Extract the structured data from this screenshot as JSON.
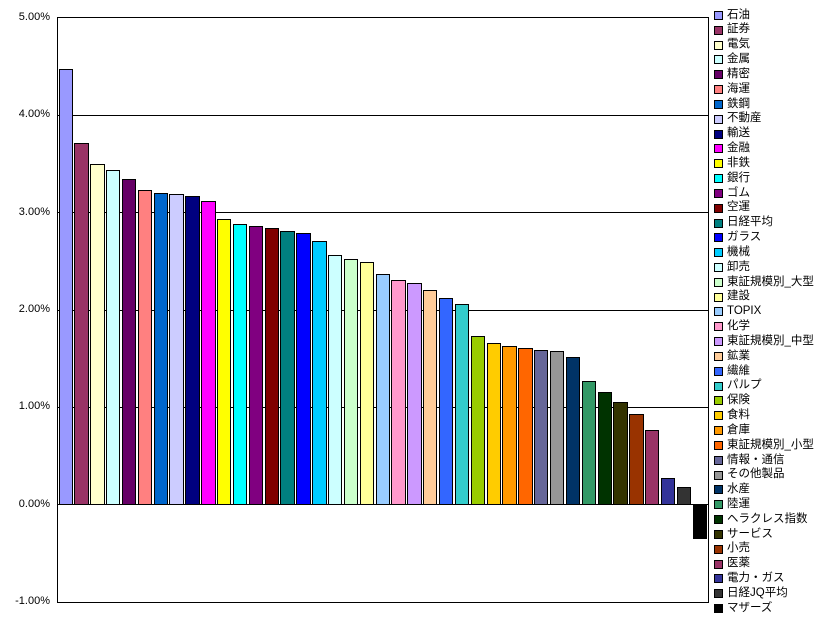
{
  "chart_data": {
    "type": "bar",
    "title": "",
    "xlabel": "",
    "ylabel": "",
    "ylim": [
      -1,
      5
    ],
    "yticks": [
      5,
      4,
      3,
      2,
      1,
      0,
      -1
    ],
    "ytick_labels": [
      "5.00%",
      "4.00%",
      "3.00%",
      "2.00%",
      "1.00%",
      "0.00%",
      "-1.00%"
    ],
    "grid": true,
    "legend_position": "right",
    "background_color": "#FFFFFF",
    "plot_border_color": "#000000",
    "gridline_color": "#000000",
    "categories": [
      "石油",
      "証券",
      "電気",
      "金属",
      "精密",
      "海運",
      "鉄鋼",
      "不動産",
      "輸送",
      "金融",
      "非鉄",
      "銀行",
      "ゴム",
      "空運",
      "日経平均",
      "ガラス",
      "機械",
      "卸売",
      "東証規模別_大型",
      "建設",
      "TOPIX",
      "化学",
      "東証規模別_中型",
      "鉱業",
      "繊維",
      "パルプ",
      "保険",
      "食料",
      "倉庫",
      "東証規模別_小型",
      "情報・通信",
      "その他製品",
      "水産",
      "陸運",
      "ヘラクレス指数",
      "サービス",
      "小売",
      "医薬",
      "電力・ガス",
      "日経JQ平均",
      "マザーズ"
    ],
    "values": [
      4.48,
      3.72,
      3.5,
      3.44,
      3.35,
      3.23,
      3.2,
      3.19,
      3.17,
      3.12,
      2.94,
      2.88,
      2.86,
      2.84,
      2.81,
      2.79,
      2.71,
      2.57,
      2.52,
      2.49,
      2.37,
      2.31,
      2.28,
      2.21,
      2.12,
      2.06,
      1.73,
      1.66,
      1.63,
      1.61,
      1.59,
      1.58,
      1.52,
      1.27,
      1.16,
      1.06,
      0.93,
      0.77,
      0.27,
      0.18,
      -0.35
    ],
    "colors": [
      "#9999FF",
      "#993366",
      "#FFFFCC",
      "#CCFFFF",
      "#660066",
      "#FF8080",
      "#0066CC",
      "#CCCCFF",
      "#000080",
      "#FF00FF",
      "#FFFF00",
      "#00FFFF",
      "#800080",
      "#800000",
      "#008080",
      "#0000FF",
      "#00CCFF",
      "#CCFFFF",
      "#CCFFCC",
      "#FFFF99",
      "#99CCFF",
      "#FF99CC",
      "#CC99FF",
      "#FFCC99",
      "#3366FF",
      "#33CCCC",
      "#99CC00",
      "#FFCC00",
      "#FF9900",
      "#FF6600",
      "#666699",
      "#969696",
      "#003366",
      "#339966",
      "#003300",
      "#333300",
      "#993300",
      "#993366",
      "#333399",
      "#333333",
      "#000000"
    ]
  }
}
